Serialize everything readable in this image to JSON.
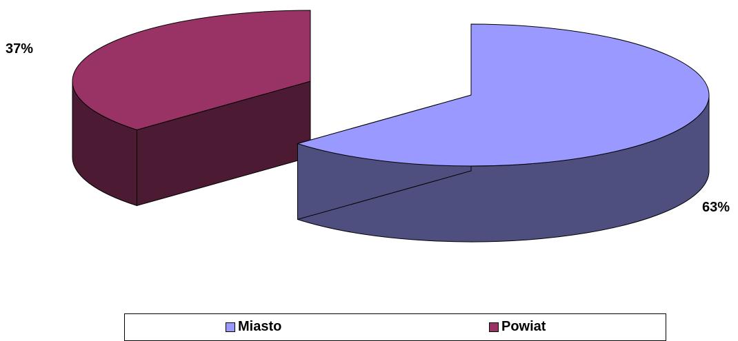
{
  "chart_data": {
    "type": "pie",
    "title": "",
    "slices": [
      {
        "name": "Miasto",
        "value": 63,
        "label": "63%",
        "top_color": "#9999ff",
        "side_color": "#4f4f7f"
      },
      {
        "name": "Powiat",
        "value": 37,
        "label": "37%",
        "top_color": "#993366",
        "side_color": "#4d1a33"
      }
    ],
    "legend_placement": "bottom",
    "legend": [
      {
        "label": "Miasto",
        "color": "#9999ff"
      },
      {
        "label": "Powiat",
        "color": "#993366"
      }
    ]
  }
}
